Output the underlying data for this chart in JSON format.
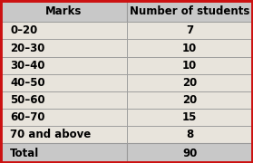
{
  "col1_header": "Marks",
  "col2_header": "Number of students",
  "rows": [
    [
      "0–20",
      "7"
    ],
    [
      "20–30",
      "10"
    ],
    [
      "30–40",
      "10"
    ],
    [
      "40–50",
      "20"
    ],
    [
      "50–60",
      "20"
    ],
    [
      "60–70",
      "15"
    ],
    [
      "70 and above",
      "8"
    ]
  ],
  "total_label": "Total",
  "total_value": "90",
  "header_bg": "#c8c8c8",
  "total_bg": "#c8c8c8",
  "body_bg": "#e8e4dc",
  "outer_bg": "#e8e4dc",
  "border_color": "#999999",
  "outer_border_color": "#cc1111",
  "text_color": "#000000",
  "header_fontsize": 8.5,
  "body_fontsize": 8.5,
  "col_split": 0.5
}
